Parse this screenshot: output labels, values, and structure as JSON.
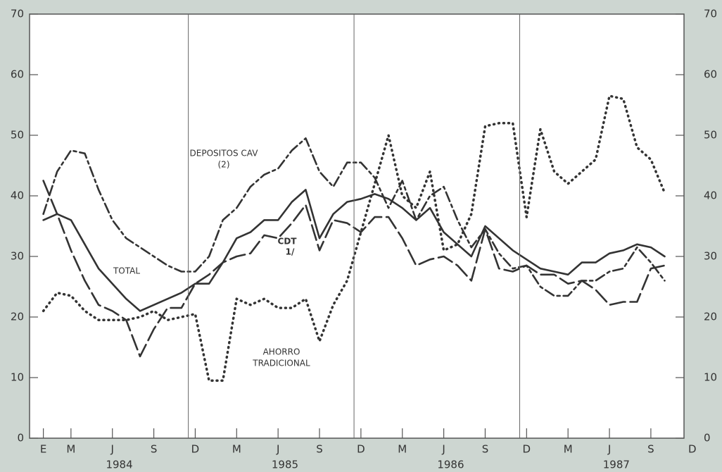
{
  "chart_data": {
    "type": "line",
    "x": [
      1,
      2,
      3,
      4,
      5,
      6,
      7,
      8,
      9,
      10,
      11,
      12,
      13,
      14,
      15,
      16,
      17,
      18,
      19,
      20,
      21,
      22,
      23,
      24,
      25,
      26,
      27,
      28,
      29,
      30,
      31,
      32,
      33,
      34,
      35,
      36,
      37,
      38,
      39,
      40,
      41,
      42,
      43,
      44,
      45,
      46
    ],
    "xlim": [
      0,
      47.4
    ],
    "xticks": [
      {
        "value": 1,
        "label": "E"
      },
      {
        "value": 3,
        "label": "M"
      },
      {
        "value": 6,
        "label": "J"
      },
      {
        "value": 9,
        "label": "S"
      },
      {
        "value": 12,
        "label": "D"
      },
      {
        "value": 15,
        "label": "M"
      },
      {
        "value": 18,
        "label": "J"
      },
      {
        "value": 21,
        "label": "S"
      },
      {
        "value": 24,
        "label": "D"
      },
      {
        "value": 27,
        "label": "M"
      },
      {
        "value": 30,
        "label": "J"
      },
      {
        "value": 33,
        "label": "S"
      },
      {
        "value": 36,
        "label": "D"
      },
      {
        "value": 39,
        "label": "M"
      },
      {
        "value": 42,
        "label": "J"
      },
      {
        "value": 45,
        "label": "S"
      },
      {
        "value": 48,
        "label": "D"
      }
    ],
    "years": [
      "1984",
      "1985",
      "1986",
      "1987"
    ],
    "ylim": [
      0,
      70
    ],
    "yticks": [
      0,
      10,
      20,
      30,
      40,
      50,
      60,
      70
    ],
    "y2lim": [
      0,
      70
    ],
    "y2ticks": [
      0,
      10,
      20,
      30,
      40,
      50,
      60,
      70
    ],
    "series": [
      {
        "color": "#333333",
        "style": "solid",
        "values": [
          36,
          37,
          36,
          32,
          28,
          25.5,
          23,
          21,
          22,
          23,
          24,
          25.5,
          25.5,
          29,
          33,
          34,
          36,
          36,
          39,
          41,
          33,
          37,
          39,
          39.5,
          40.3,
          39.5,
          38,
          36,
          38,
          34,
          32,
          30,
          35,
          33,
          31,
          29.5,
          28,
          27.5,
          27,
          29,
          29,
          30.5,
          31,
          32,
          31.5,
          30
        ]
      },
      {
        "color": "#333333",
        "style": "dash",
        "values": [
          42.5,
          37,
          31,
          26,
          22,
          21,
          19.5,
          13.5,
          18,
          21.5,
          21.5,
          25.5,
          27,
          29,
          30,
          30.5,
          33.5,
          33,
          35.5,
          38.5,
          31,
          36,
          35.5,
          34,
          36.5,
          36.5,
          33,
          28.5,
          29.5,
          30,
          28.5,
          26,
          34.5,
          28,
          27.5,
          28.5,
          27,
          27,
          25.5,
          26,
          24.5,
          22,
          22.5,
          22.5,
          28,
          28.5
        ]
      },
      {
        "color": "#333333",
        "style": "longdash",
        "values": [
          37,
          44,
          47.5,
          47,
          41,
          36,
          33,
          31.5,
          30,
          28.5,
          27.5,
          27.5,
          30,
          36,
          38,
          41.5,
          43.5,
          44.5,
          47.5,
          49.5,
          44,
          41.5,
          45.5,
          45.5,
          43,
          38,
          42.5,
          36,
          40,
          41.5,
          36,
          31.5,
          34.5,
          30.5,
          28,
          28.5,
          25,
          23.5,
          23.5,
          26,
          26,
          27.5,
          28,
          31.5,
          29,
          26
        ]
      },
      {
        "color": "#333333",
        "style": "dot",
        "values": [
          21,
          24,
          23.5,
          21,
          19.5,
          19.5,
          19.5,
          20,
          21,
          19.5,
          20,
          20.5,
          9.5,
          9.5,
          23,
          22,
          23,
          21.5,
          21.5,
          23,
          16,
          22,
          26,
          34,
          42,
          50,
          40,
          38,
          44,
          31,
          32,
          37,
          51.5,
          52,
          52,
          36.5,
          51,
          44,
          42,
          44,
          46,
          56.5,
          56,
          48,
          46,
          40.5
        ]
      }
    ],
    "annotations": [
      "DEPOSITOS CAV",
      "(2)",
      "TOTAL",
      "CDT",
      "1/",
      "AHORRO",
      "TRADICIONAL"
    ]
  }
}
